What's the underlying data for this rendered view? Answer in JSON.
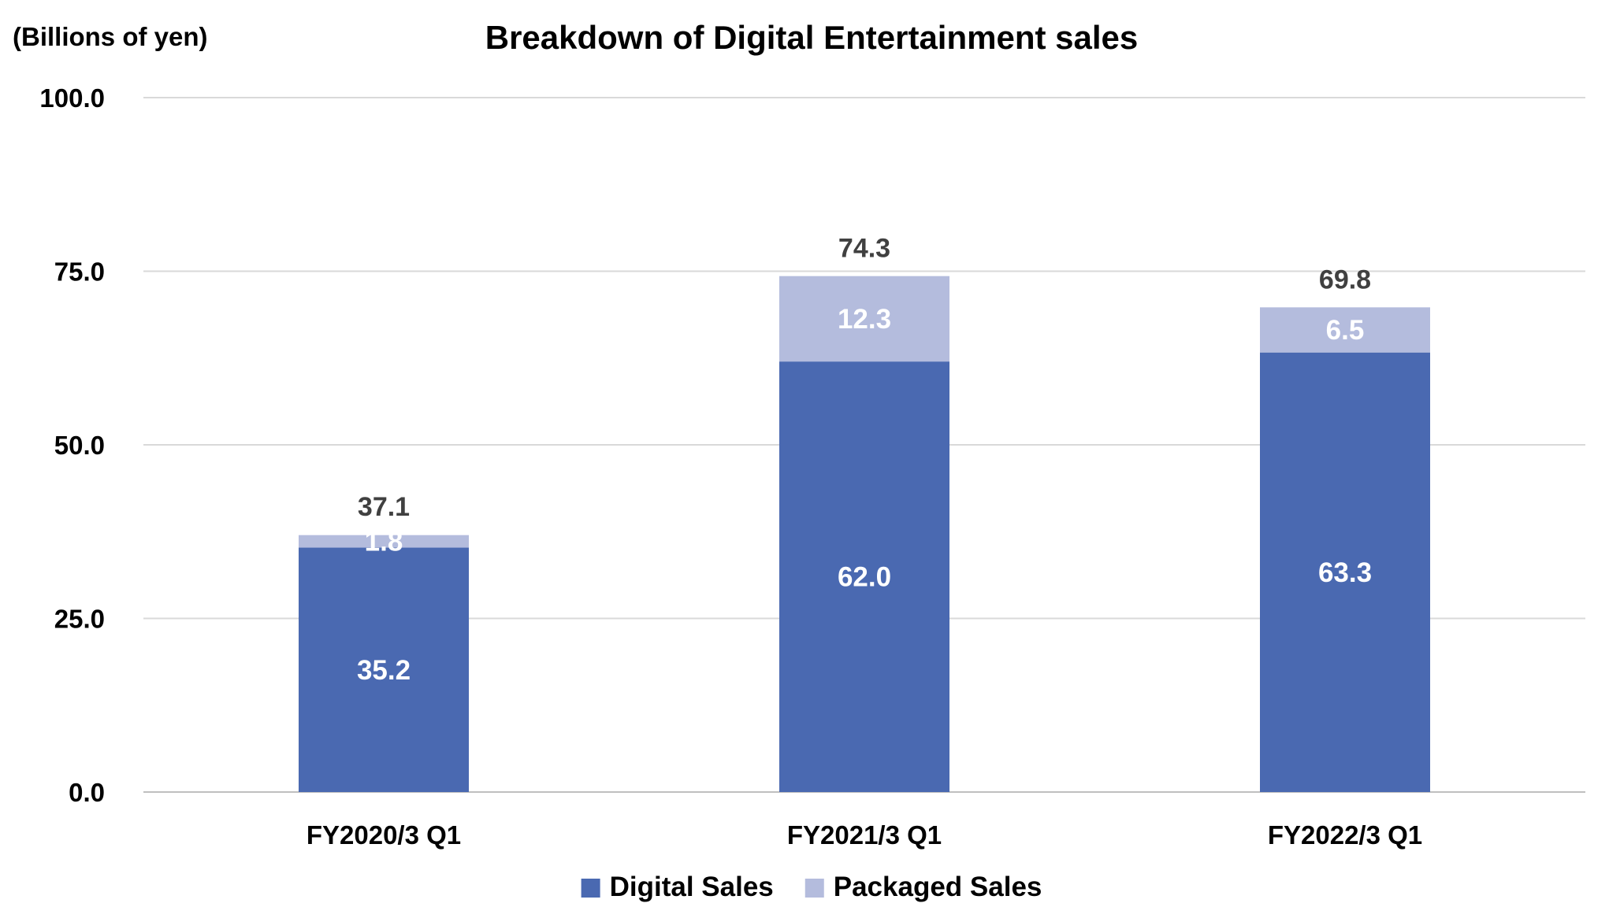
{
  "chart_data": {
    "type": "bar",
    "stacked": true,
    "title": "Breakdown of Digital Entertainment sales",
    "unit_label": "(Billions of yen)",
    "categories": [
      "FY2020/3 Q1",
      "FY2021/3 Q1",
      "FY2022/3 Q1"
    ],
    "series": [
      {
        "name": "Digital Sales",
        "color": "#4a69b1",
        "values": [
          35.2,
          62.0,
          63.3
        ],
        "labels": [
          "35.2",
          "62.0",
          "63.3"
        ]
      },
      {
        "name": "Packaged Sales",
        "color": "#b4bcdd",
        "values": [
          1.8,
          12.3,
          6.5
        ],
        "labels": [
          "1.8",
          "12.3",
          "6.5"
        ]
      }
    ],
    "totals": [
      37.1,
      74.3,
      69.8
    ],
    "total_labels": [
      "37.1",
      "74.3",
      "69.8"
    ],
    "ylim": [
      0,
      100
    ],
    "yticks": [
      0,
      25,
      50,
      75,
      100
    ],
    "ytick_labels": [
      "0.0",
      "25.0",
      "50.0",
      "75.0",
      "100.0"
    ],
    "grid": true,
    "legend_position": "bottom"
  }
}
